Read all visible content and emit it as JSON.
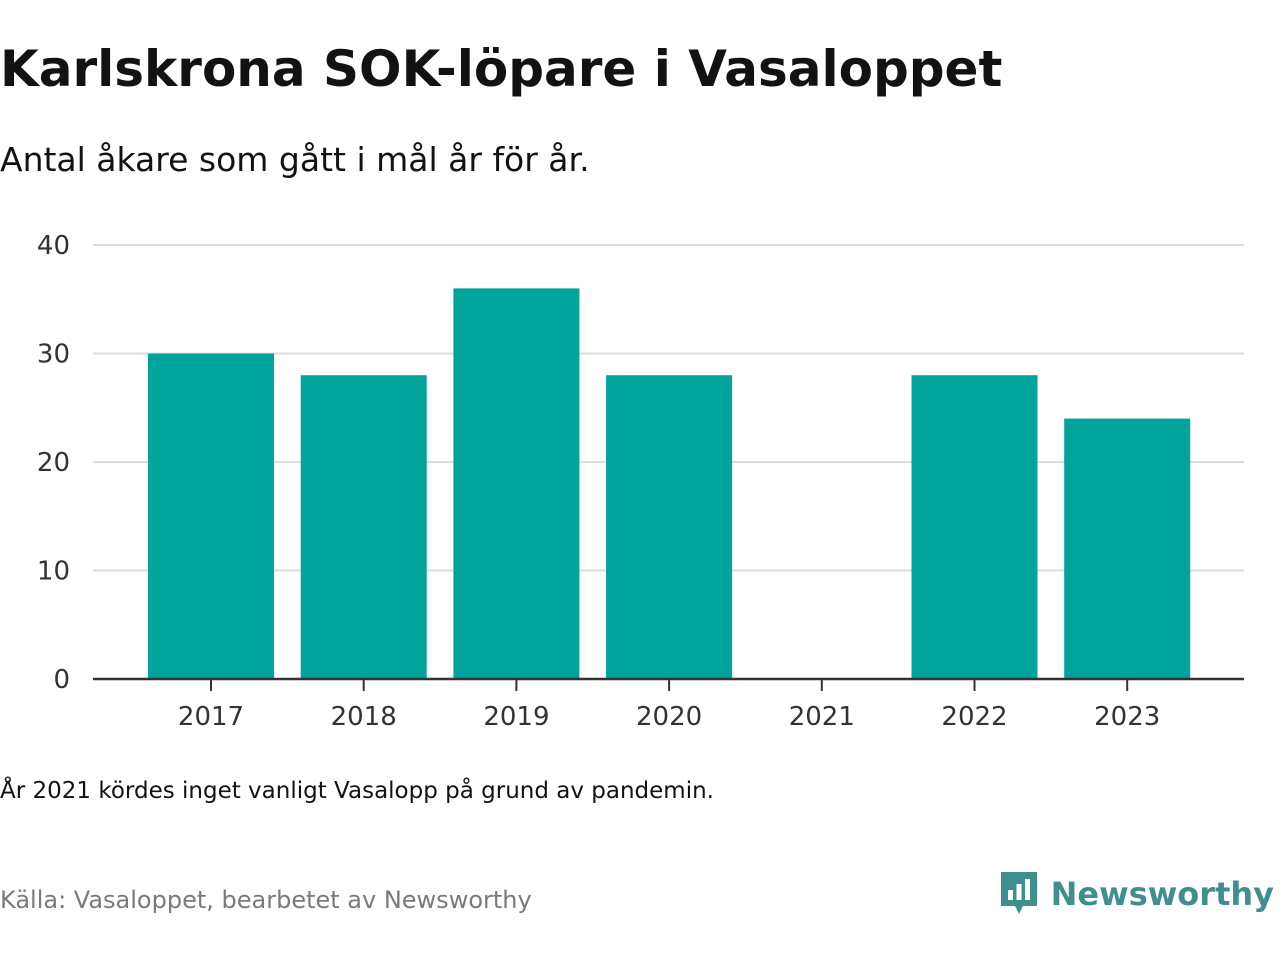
{
  "header": {
    "title": "Karlskrona SOK-löpare i Vasaloppet",
    "subtitle": "Antal åkare som gått i mål år för år."
  },
  "footer": {
    "note": "År 2021 kördes inget vanligt Vasalopp på grund av pandemin.",
    "source": "Källa: Vasaloppet, bearbetet av Newsworthy",
    "brand": "Newsworthy",
    "brand_icon": "newsworthy-logo-icon"
  },
  "colors": {
    "bar": "#00a49a",
    "grid": "#dddddd",
    "axis": "#333333",
    "brand": "#3f8f8e"
  },
  "chart_data": {
    "type": "bar",
    "categories": [
      "2017",
      "2018",
      "2019",
      "2020",
      "2021",
      "2022",
      "2023"
    ],
    "values": [
      30,
      28,
      36,
      28,
      null,
      28,
      24
    ],
    "title": "Karlskrona SOK-löpare i Vasaloppet",
    "subtitle": "Antal åkare som gått i mål år för år.",
    "xlabel": "",
    "ylabel": "",
    "ylim": [
      0,
      40
    ],
    "yticks": [
      0,
      10,
      20,
      30,
      40
    ],
    "grid": true,
    "legend": "none"
  }
}
